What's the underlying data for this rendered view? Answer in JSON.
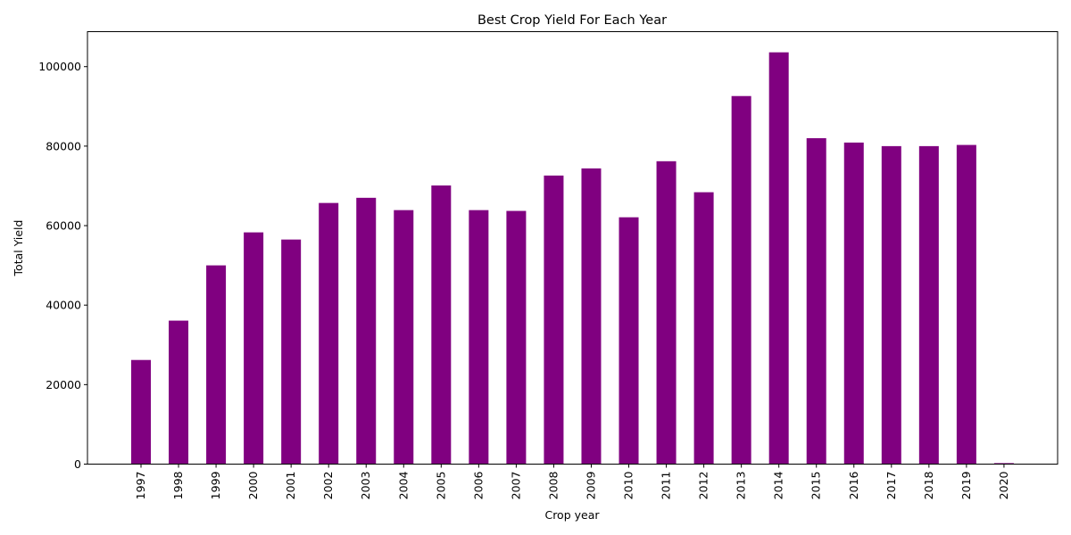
{
  "chart_data": {
    "type": "bar",
    "title": "Best Crop Yield For Each Year",
    "xlabel": "Crop year",
    "ylabel": "Total Yield",
    "categories": [
      "1997",
      "1998",
      "1999",
      "2000",
      "2001",
      "2002",
      "2003",
      "2004",
      "2005",
      "2006",
      "2007",
      "2008",
      "2009",
      "2010",
      "2011",
      "2012",
      "2013",
      "2014",
      "2015",
      "2016",
      "2017",
      "2018",
      "2019",
      "2020"
    ],
    "values": [
      26200,
      36100,
      50000,
      58300,
      56500,
      65700,
      67000,
      63900,
      70100,
      63900,
      63700,
      72600,
      74400,
      62100,
      76200,
      68400,
      92600,
      103600,
      82000,
      80900,
      80000,
      80000,
      80300,
      250
    ],
    "ylim": [
      0,
      108800
    ],
    "yticks": [
      0,
      20000,
      40000,
      60000,
      80000,
      100000
    ],
    "bar_color": "#800080",
    "grid": false,
    "legend": "none"
  }
}
